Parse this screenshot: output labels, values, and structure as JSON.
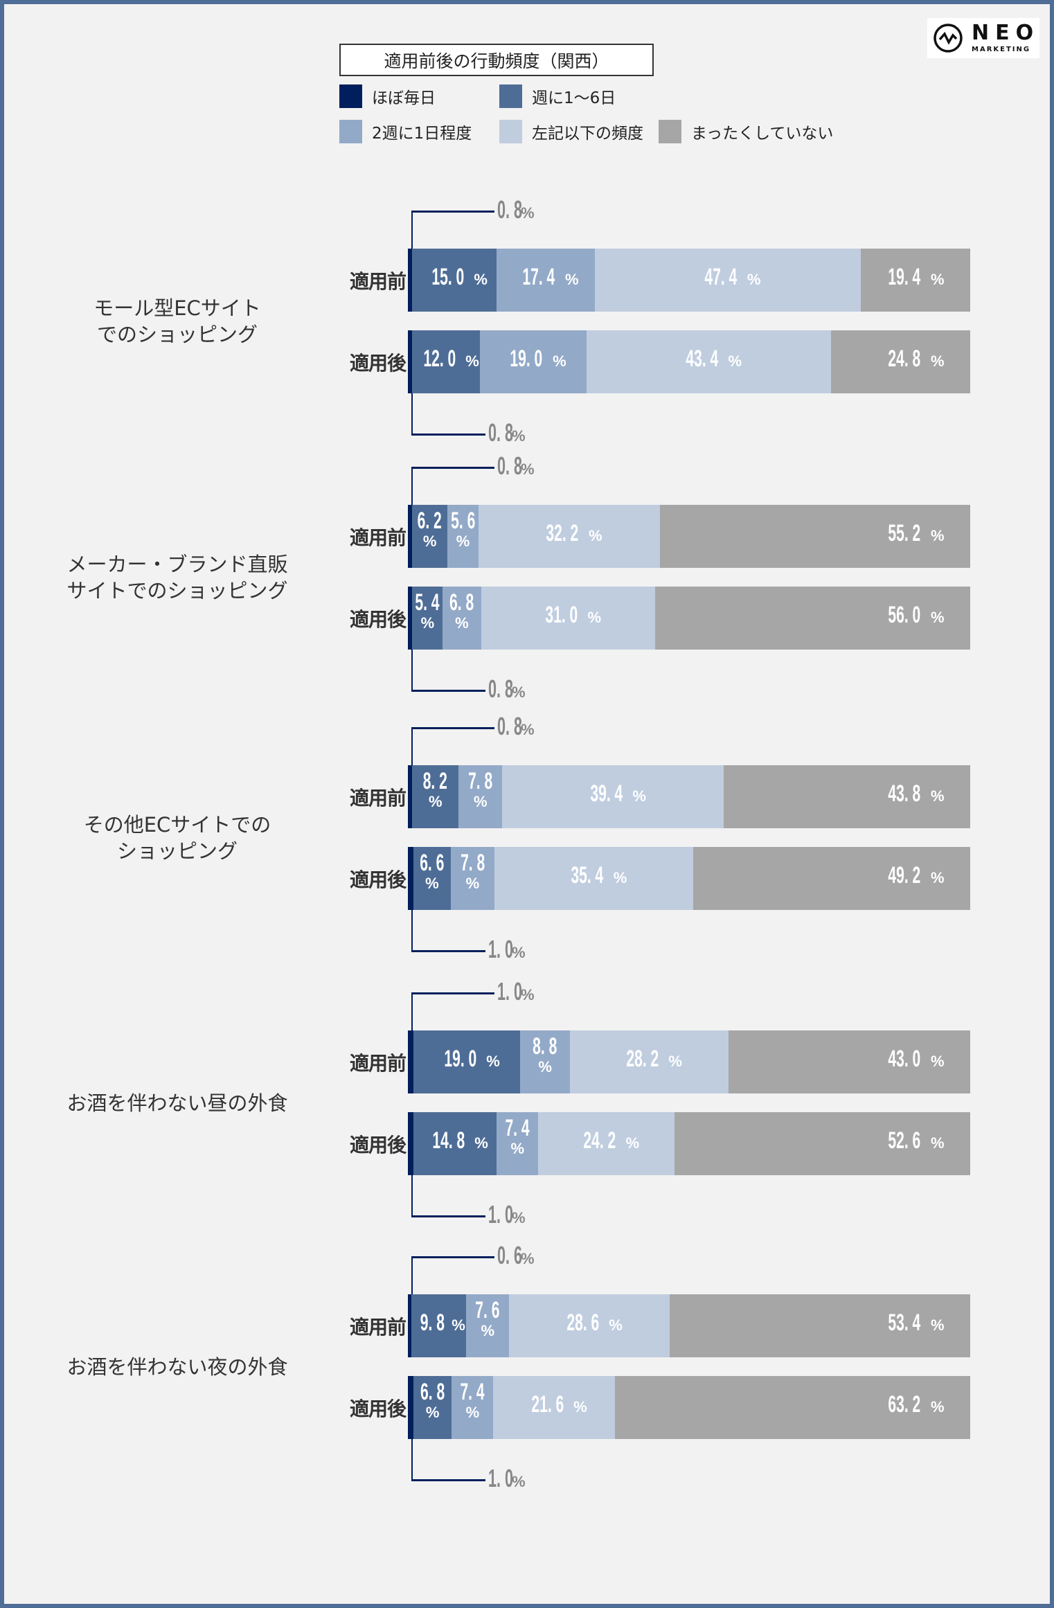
{
  "logo": {
    "name": "NEO",
    "subtitle": "MARKETING"
  },
  "chart_data": {
    "type": "bar",
    "orientation": "horizontal-stacked-100",
    "title": "適用前後の行動頻度（関西）",
    "legend": [
      {
        "name": "ほぼ毎日",
        "color": "#001f5c"
      },
      {
        "name": "週に1～6日",
        "color": "#4e6d96"
      },
      {
        "name": "2週に1日程度",
        "color": "#93a9c8"
      },
      {
        "name": "左記以下の頻度",
        "color": "#c0cddf"
      },
      {
        "name": "まったくしていない",
        "color": "#a6a6a6"
      }
    ],
    "legend_position": "top",
    "unit": "%",
    "xlim": [
      0,
      100
    ],
    "row_labels": [
      "適用前",
      "適用後"
    ],
    "groups": [
      {
        "category": "モール型ECサイト\nでのショッピング",
        "rows": [
          {
            "label": "適用前",
            "values": [
              0.8,
              15.0,
              17.4,
              47.4,
              19.4
            ]
          },
          {
            "label": "適用後",
            "values": [
              0.8,
              12.0,
              19.0,
              43.4,
              24.8
            ]
          }
        ]
      },
      {
        "category": "メーカー・ブランド直販\nサイトでのショッピング",
        "rows": [
          {
            "label": "適用前",
            "values": [
              0.8,
              6.2,
              5.6,
              32.2,
              55.2
            ]
          },
          {
            "label": "適用後",
            "values": [
              0.8,
              5.4,
              6.8,
              31.0,
              56.0
            ]
          }
        ]
      },
      {
        "category": "その他ECサイトでの\nショッピング",
        "rows": [
          {
            "label": "適用前",
            "values": [
              0.8,
              8.2,
              7.8,
              39.4,
              43.8
            ]
          },
          {
            "label": "適用後",
            "values": [
              1.0,
              6.6,
              7.8,
              35.4,
              49.2
            ]
          }
        ]
      },
      {
        "category": "お酒を伴わない昼の外食",
        "rows": [
          {
            "label": "適用前",
            "values": [
              1.0,
              19.0,
              8.8,
              28.2,
              43.0
            ]
          },
          {
            "label": "適用後",
            "values": [
              1.0,
              14.8,
              7.4,
              24.2,
              52.6
            ]
          }
        ]
      },
      {
        "category": "お酒を伴わない夜の外食",
        "rows": [
          {
            "label": "適用前",
            "values": [
              0.6,
              9.8,
              7.6,
              28.6,
              53.4
            ]
          },
          {
            "label": "適用後",
            "values": [
              1.0,
              6.8,
              7.4,
              21.6,
              63.2
            ]
          }
        ]
      }
    ]
  }
}
